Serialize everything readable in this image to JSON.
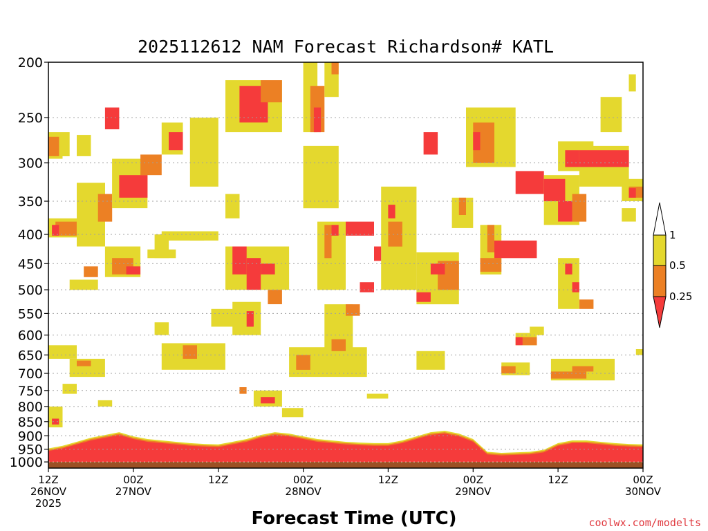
{
  "colors": {
    "ri_low": "#f53b3b",
    "ri_mid": "#ec8024",
    "ri_high": "#e4d82e",
    "ground": "#9c5024",
    "gridline": "#a0a0a0",
    "credit": "#e0383e"
  },
  "chart_data": {
    "type": "heatmap",
    "title": "2025112612 NAM Forecast Richardson# KATL",
    "xlabel": "Forecast Time (UTC)",
    "credit": "coolwx.com/modelts",
    "y_axis": {
      "quantity": "pressure (hPa)",
      "range": [
        1025,
        200
      ],
      "ticks": [
        {
          "value": 200,
          "label": "200"
        },
        {
          "value": 250,
          "label": "250"
        },
        {
          "value": 300,
          "label": "300"
        },
        {
          "value": 350,
          "label": "350"
        },
        {
          "value": 400,
          "label": "400"
        },
        {
          "value": 450,
          "label": "450"
        },
        {
          "value": 500,
          "label": "500"
        },
        {
          "value": 550,
          "label": "550"
        },
        {
          "value": 600,
          "label": "600"
        },
        {
          "value": 650,
          "label": "650"
        },
        {
          "value": 700,
          "label": "700"
        },
        {
          "value": 750,
          "label": "750"
        },
        {
          "value": 800,
          "label": "800"
        },
        {
          "value": 850,
          "label": "850"
        },
        {
          "value": 900,
          "label": "900"
        },
        {
          "value": 950,
          "label": "950"
        },
        {
          "value": 1000,
          "label": "1000"
        }
      ]
    },
    "x_axis": {
      "quantity": "forecast hour",
      "range": [
        0,
        84
      ],
      "ticks": [
        {
          "value": 0,
          "lines": [
            "12Z",
            "26NOV",
            "2025"
          ]
        },
        {
          "value": 12,
          "lines": [
            "00Z",
            "27NOV"
          ]
        },
        {
          "value": 24,
          "lines": [
            "12Z"
          ]
        },
        {
          "value": 36,
          "lines": [
            "00Z",
            "28NOV"
          ]
        },
        {
          "value": 48,
          "lines": [
            "12Z"
          ]
        },
        {
          "value": 60,
          "lines": [
            "00Z",
            "29NOV"
          ]
        },
        {
          "value": 72,
          "lines": [
            "12Z"
          ]
        },
        {
          "value": 84,
          "lines": [
            "00Z",
            "30NOV"
          ]
        }
      ]
    },
    "legend": {
      "categories": [
        {
          "label": "1",
          "color_key": "ri_high"
        },
        {
          "label": "0.5",
          "color_key": "ri_mid"
        },
        {
          "label": "0.25",
          "color_key": "ri_low"
        }
      ]
    },
    "ground_level_hpa": 1000,
    "boundary_layer": [
      {
        "hour": 0,
        "top": 955
      },
      {
        "hour": 2,
        "top": 945
      },
      {
        "hour": 4,
        "top": 930
      },
      {
        "hour": 6,
        "top": 915
      },
      {
        "hour": 8,
        "top": 905
      },
      {
        "hour": 10,
        "top": 895
      },
      {
        "hour": 12,
        "top": 910
      },
      {
        "hour": 14,
        "top": 920
      },
      {
        "hour": 16,
        "top": 925
      },
      {
        "hour": 18,
        "top": 930
      },
      {
        "hour": 20,
        "top": 935
      },
      {
        "hour": 22,
        "top": 938
      },
      {
        "hour": 24,
        "top": 940
      },
      {
        "hour": 26,
        "top": 930
      },
      {
        "hour": 28,
        "top": 920
      },
      {
        "hour": 30,
        "top": 905
      },
      {
        "hour": 32,
        "top": 895
      },
      {
        "hour": 34,
        "top": 900
      },
      {
        "hour": 36,
        "top": 910
      },
      {
        "hour": 38,
        "top": 920
      },
      {
        "hour": 40,
        "top": 925
      },
      {
        "hour": 42,
        "top": 930
      },
      {
        "hour": 44,
        "top": 933
      },
      {
        "hour": 46,
        "top": 935
      },
      {
        "hour": 48,
        "top": 935
      },
      {
        "hour": 50,
        "top": 925
      },
      {
        "hour": 52,
        "top": 910
      },
      {
        "hour": 54,
        "top": 895
      },
      {
        "hour": 56,
        "top": 890
      },
      {
        "hour": 58,
        "top": 900
      },
      {
        "hour": 60,
        "top": 920
      },
      {
        "hour": 62,
        "top": 968
      },
      {
        "hour": 64,
        "top": 972
      },
      {
        "hour": 66,
        "top": 970
      },
      {
        "hour": 68,
        "top": 968
      },
      {
        "hour": 70,
        "top": 960
      },
      {
        "hour": 72,
        "top": 935
      },
      {
        "hour": 74,
        "top": 925
      },
      {
        "hour": 76,
        "top": 925
      },
      {
        "hour": 78,
        "top": 930
      },
      {
        "hour": 80,
        "top": 935
      },
      {
        "hour": 82,
        "top": 938
      },
      {
        "hour": 84,
        "top": 940
      }
    ],
    "patches": [
      {
        "h0": 0,
        "h1": 2,
        "p0": 265,
        "p1": 295,
        "v": "high"
      },
      {
        "h0": 0,
        "h1": 1.5,
        "p0": 270,
        "p1": 292,
        "v": "mid"
      },
      {
        "h0": 2,
        "h1": 3,
        "p0": 265,
        "p1": 292,
        "v": "high"
      },
      {
        "h0": 4,
        "h1": 6,
        "p0": 268,
        "p1": 292,
        "v": "high"
      },
      {
        "h0": 0,
        "h1": 4,
        "p0": 375,
        "p1": 405,
        "v": "high"
      },
      {
        "h0": 1,
        "h1": 4,
        "p0": 380,
        "p1": 402,
        "v": "mid"
      },
      {
        "h0": 0.5,
        "h1": 1.5,
        "p0": 385,
        "p1": 402,
        "v": "low"
      },
      {
        "h0": 4,
        "h1": 8,
        "p0": 325,
        "p1": 420,
        "v": "high"
      },
      {
        "h0": 7,
        "h1": 9,
        "p0": 340,
        "p1": 380,
        "v": "mid"
      },
      {
        "h0": 8,
        "h1": 10,
        "p0": 240,
        "p1": 262,
        "v": "low"
      },
      {
        "h0": 9,
        "h1": 14,
        "p0": 295,
        "p1": 360,
        "v": "high"
      },
      {
        "h0": 10,
        "h1": 14,
        "p0": 315,
        "p1": 345,
        "v": "low"
      },
      {
        "h0": 13,
        "h1": 16,
        "p0": 290,
        "p1": 315,
        "v": "mid"
      },
      {
        "h0": 16,
        "h1": 19,
        "p0": 255,
        "p1": 290,
        "v": "high"
      },
      {
        "h0": 17,
        "h1": 19,
        "p0": 265,
        "p1": 285,
        "v": "low"
      },
      {
        "h0": 15,
        "h1": 17,
        "p0": 400,
        "p1": 440,
        "v": "high"
      },
      {
        "h0": 8,
        "h1": 13,
        "p0": 420,
        "p1": 475,
        "v": "high"
      },
      {
        "h0": 9,
        "h1": 12,
        "p0": 440,
        "p1": 470,
        "v": "mid"
      },
      {
        "h0": 11,
        "h1": 13,
        "p0": 455,
        "p1": 470,
        "v": "low"
      },
      {
        "h0": 5,
        "h1": 7,
        "p0": 455,
        "p1": 475,
        "v": "mid"
      },
      {
        "h0": 3,
        "h1": 7,
        "p0": 480,
        "p1": 500,
        "v": "high"
      },
      {
        "h0": 14,
        "h1": 18,
        "p0": 425,
        "p1": 440,
        "v": "high"
      },
      {
        "h0": 0,
        "h1": 4,
        "p0": 625,
        "p1": 660,
        "v": "high"
      },
      {
        "h0": 3,
        "h1": 8,
        "p0": 660,
        "p1": 710,
        "v": "high"
      },
      {
        "h0": 4,
        "h1": 6,
        "p0": 665,
        "p1": 680,
        "v": "mid"
      },
      {
        "h0": 2,
        "h1": 4,
        "p0": 730,
        "p1": 760,
        "v": "high"
      },
      {
        "h0": 0,
        "h1": 2,
        "p0": 800,
        "p1": 870,
        "v": "high"
      },
      {
        "h0": 0.5,
        "h1": 1.5,
        "p0": 840,
        "p1": 860,
        "v": "low"
      },
      {
        "h0": 16,
        "h1": 25,
        "p0": 620,
        "p1": 690,
        "v": "high"
      },
      {
        "h0": 19,
        "h1": 21,
        "p0": 625,
        "p1": 660,
        "v": "mid"
      },
      {
        "h0": 16,
        "h1": 22,
        "p0": 395,
        "p1": 410,
        "v": "high"
      },
      {
        "h0": 25,
        "h1": 33,
        "p0": 215,
        "p1": 265,
        "v": "high"
      },
      {
        "h0": 27,
        "h1": 31,
        "p0": 220,
        "p1": 255,
        "v": "low"
      },
      {
        "h0": 30,
        "h1": 33,
        "p0": 215,
        "p1": 235,
        "v": "mid"
      },
      {
        "h0": 25,
        "h1": 34,
        "p0": 420,
        "p1": 500,
        "v": "high"
      },
      {
        "h0": 26,
        "h1": 28,
        "p0": 420,
        "p1": 470,
        "v": "low"
      },
      {
        "h0": 28,
        "h1": 30,
        "p0": 440,
        "p1": 500,
        "v": "low"
      },
      {
        "h0": 30,
        "h1": 32,
        "p0": 450,
        "p1": 470,
        "v": "low"
      },
      {
        "h0": 31,
        "h1": 33,
        "p0": 500,
        "p1": 530,
        "v": "mid"
      },
      {
        "h0": 26,
        "h1": 30,
        "p0": 525,
        "p1": 600,
        "v": "high"
      },
      {
        "h0": 27,
        "h1": 29,
        "p0": 545,
        "p1": 580,
        "v": "low"
      },
      {
        "h0": 29,
        "h1": 33,
        "p0": 750,
        "p1": 800,
        "v": "high"
      },
      {
        "h0": 30,
        "h1": 32,
        "p0": 770,
        "p1": 790,
        "v": "low"
      },
      {
        "h0": 34,
        "h1": 45,
        "p0": 630,
        "p1": 710,
        "v": "high"
      },
      {
        "h0": 35,
        "h1": 37,
        "p0": 650,
        "p1": 690,
        "v": "mid"
      },
      {
        "h0": 39,
        "h1": 43,
        "p0": 530,
        "p1": 700,
        "v": "high"
      },
      {
        "h0": 40,
        "h1": 42,
        "p0": 610,
        "p1": 640,
        "v": "mid"
      },
      {
        "h0": 36,
        "h1": 38,
        "p0": 200,
        "p1": 265,
        "v": "high"
      },
      {
        "h0": 37,
        "h1": 39,
        "p0": 220,
        "p1": 265,
        "v": "mid"
      },
      {
        "h0": 37.5,
        "h1": 38.5,
        "p0": 240,
        "p1": 265,
        "v": "low"
      },
      {
        "h0": 39,
        "h1": 41,
        "p0": 200,
        "p1": 230,
        "v": "high"
      },
      {
        "h0": 40,
        "h1": 41,
        "p0": 200,
        "p1": 210,
        "v": "mid"
      },
      {
        "h0": 36,
        "h1": 41,
        "p0": 280,
        "p1": 360,
        "v": "high"
      },
      {
        "h0": 38,
        "h1": 42,
        "p0": 380,
        "p1": 500,
        "v": "high"
      },
      {
        "h0": 39,
        "h1": 40,
        "p0": 385,
        "p1": 440,
        "v": "mid"
      },
      {
        "h0": 40,
        "h1": 41,
        "p0": 385,
        "p1": 402,
        "v": "low"
      },
      {
        "h0": 42,
        "h1": 44,
        "p0": 380,
        "p1": 402,
        "v": "low"
      },
      {
        "h0": 44,
        "h1": 46,
        "p0": 380,
        "p1": 402,
        "v": "low"
      },
      {
        "h0": 44,
        "h1": 46,
        "p0": 485,
        "p1": 505,
        "v": "low"
      },
      {
        "h0": 42,
        "h1": 44,
        "p0": 530,
        "p1": 555,
        "v": "mid"
      },
      {
        "h0": 47,
        "h1": 52,
        "p0": 330,
        "p1": 500,
        "v": "high"
      },
      {
        "h0": 48,
        "h1": 50,
        "p0": 380,
        "p1": 420,
        "v": "mid"
      },
      {
        "h0": 48,
        "h1": 49,
        "p0": 355,
        "p1": 375,
        "v": "low"
      },
      {
        "h0": 46,
        "h1": 47,
        "p0": 420,
        "p1": 445,
        "v": "low"
      },
      {
        "h0": 52,
        "h1": 58,
        "p0": 430,
        "p1": 530,
        "v": "high"
      },
      {
        "h0": 55,
        "h1": 58,
        "p0": 445,
        "p1": 500,
        "v": "mid"
      },
      {
        "h0": 54,
        "h1": 56,
        "p0": 450,
        "p1": 470,
        "v": "low"
      },
      {
        "h0": 52,
        "h1": 54,
        "p0": 505,
        "p1": 525,
        "v": "low"
      },
      {
        "h0": 57,
        "h1": 60,
        "p0": 345,
        "p1": 390,
        "v": "high"
      },
      {
        "h0": 58,
        "h1": 59,
        "p0": 345,
        "p1": 370,
        "v": "mid"
      },
      {
        "h0": 59,
        "h1": 66,
        "p0": 240,
        "p1": 305,
        "v": "high"
      },
      {
        "h0": 60,
        "h1": 63,
        "p0": 255,
        "p1": 300,
        "v": "mid"
      },
      {
        "h0": 60,
        "h1": 61,
        "p0": 265,
        "p1": 285,
        "v": "low"
      },
      {
        "h0": 53,
        "h1": 55,
        "p0": 265,
        "p1": 290,
        "v": "low"
      },
      {
        "h0": 61,
        "h1": 64,
        "p0": 385,
        "p1": 470,
        "v": "high"
      },
      {
        "h0": 62,
        "h1": 63,
        "p0": 385,
        "p1": 430,
        "v": "mid"
      },
      {
        "h0": 63,
        "h1": 69,
        "p0": 410,
        "p1": 440,
        "v": "low"
      },
      {
        "h0": 61,
        "h1": 64,
        "p0": 440,
        "p1": 465,
        "v": "mid"
      },
      {
        "h0": 66,
        "h1": 69,
        "p0": 595,
        "p1": 625,
        "v": "high"
      },
      {
        "h0": 66,
        "h1": 67,
        "p0": 605,
        "p1": 625,
        "v": "low"
      },
      {
        "h0": 67,
        "h1": 69,
        "p0": 605,
        "p1": 625,
        "v": "mid"
      },
      {
        "h0": 64,
        "h1": 68,
        "p0": 670,
        "p1": 705,
        "v": "high"
      },
      {
        "h0": 64,
        "h1": 66,
        "p0": 680,
        "p1": 700,
        "v": "mid"
      },
      {
        "h0": 71,
        "h1": 80,
        "p0": 660,
        "p1": 720,
        "v": "high"
      },
      {
        "h0": 71,
        "h1": 76,
        "p0": 695,
        "p1": 715,
        "v": "mid"
      },
      {
        "h0": 74,
        "h1": 77,
        "p0": 680,
        "p1": 695,
        "v": "mid"
      },
      {
        "h0": 66,
        "h1": 70,
        "p0": 310,
        "p1": 340,
        "v": "low"
      },
      {
        "h0": 70,
        "h1": 75,
        "p0": 315,
        "p1": 385,
        "v": "high"
      },
      {
        "h0": 70,
        "h1": 73,
        "p0": 320,
        "p1": 350,
        "v": "low"
      },
      {
        "h0": 72,
        "h1": 77,
        "p0": 275,
        "p1": 310,
        "v": "high"
      },
      {
        "h0": 73,
        "h1": 76,
        "p0": 285,
        "p1": 305,
        "v": "low"
      },
      {
        "h0": 75,
        "h1": 82,
        "p0": 280,
        "p1": 330,
        "v": "high"
      },
      {
        "h0": 75,
        "h1": 82,
        "p0": 285,
        "p1": 305,
        "v": "low"
      },
      {
        "h0": 74,
        "h1": 76,
        "p0": 340,
        "p1": 380,
        "v": "mid"
      },
      {
        "h0": 72,
        "h1": 74,
        "p0": 350,
        "p1": 380,
        "v": "low"
      },
      {
        "h0": 81,
        "h1": 84,
        "p0": 320,
        "p1": 350,
        "v": "high"
      },
      {
        "h0": 82,
        "h1": 84,
        "p0": 330,
        "p1": 345,
        "v": "mid"
      },
      {
        "h0": 82,
        "h1": 83,
        "p0": 332,
        "p1": 345,
        "v": "low"
      },
      {
        "h0": 72,
        "h1": 75,
        "p0": 440,
        "p1": 540,
        "v": "high"
      },
      {
        "h0": 73,
        "h1": 74,
        "p0": 450,
        "p1": 470,
        "v": "low"
      },
      {
        "h0": 74,
        "h1": 75,
        "p0": 485,
        "p1": 505,
        "v": "low"
      },
      {
        "h0": 75,
        "h1": 77,
        "p0": 520,
        "p1": 540,
        "v": "mid"
      },
      {
        "h0": 78,
        "h1": 81,
        "p0": 230,
        "p1": 265,
        "v": "high"
      },
      {
        "h0": 82,
        "h1": 83,
        "p0": 210,
        "p1": 225,
        "v": "high"
      },
      {
        "h0": 81,
        "h1": 83,
        "p0": 360,
        "p1": 380,
        "v": "high"
      },
      {
        "h0": 83,
        "h1": 84,
        "p0": 635,
        "p1": 650,
        "v": "high"
      },
      {
        "h0": 20,
        "h1": 24,
        "p0": 250,
        "p1": 330,
        "v": "high"
      },
      {
        "h0": 25,
        "h1": 27,
        "p0": 340,
        "p1": 375,
        "v": "high"
      },
      {
        "h0": 20,
        "h1": 24,
        "p0": 395,
        "p1": 410,
        "v": "high"
      },
      {
        "h0": 23,
        "h1": 28,
        "p0": 540,
        "p1": 580,
        "v": "high"
      },
      {
        "h0": 52,
        "h1": 56,
        "p0": 640,
        "p1": 690,
        "v": "high"
      },
      {
        "h0": 33,
        "h1": 36,
        "p0": 805,
        "p1": 835,
        "v": "high"
      },
      {
        "h0": 45,
        "h1": 48,
        "p0": 760,
        "p1": 775,
        "v": "high"
      },
      {
        "h0": 7,
        "h1": 9,
        "p0": 780,
        "p1": 800,
        "v": "high"
      },
      {
        "h0": 27,
        "h1": 28,
        "p0": 740,
        "p1": 760,
        "v": "mid"
      },
      {
        "h0": 15,
        "h1": 17,
        "p0": 570,
        "p1": 600,
        "v": "high"
      },
      {
        "h0": 68,
        "h1": 70,
        "p0": 580,
        "p1": 600,
        "v": "high"
      }
    ]
  }
}
